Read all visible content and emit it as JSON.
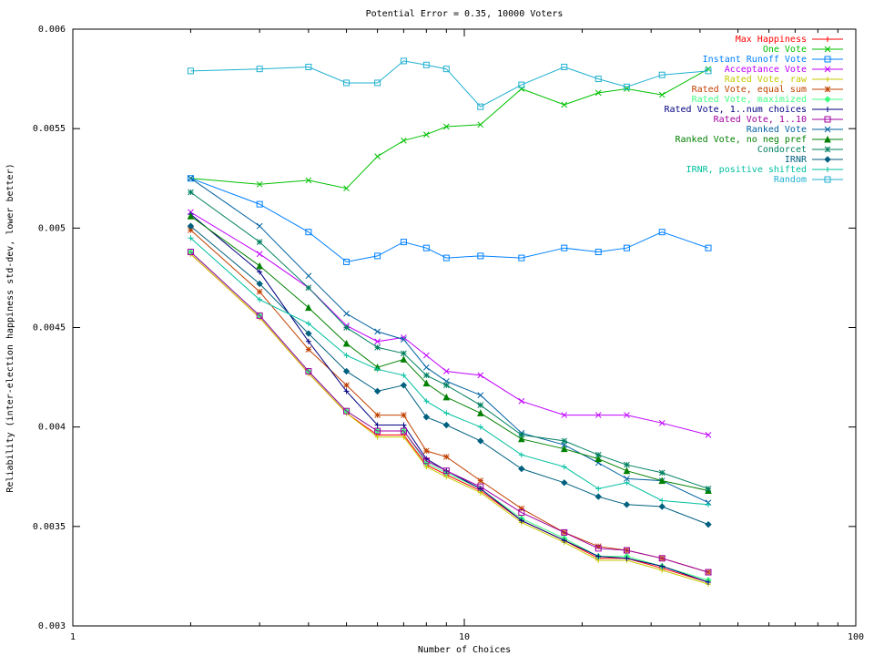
{
  "chart_data": {
    "type": "line",
    "title": "Potential Error = 0.35, 10000 Voters",
    "xlabel": "Number of Choices",
    "ylabel": "Reliability (inter-election happiness std-dev, lower better)",
    "x_scale": "log",
    "xlim": [
      1,
      100
    ],
    "ylim": [
      0.003,
      0.006
    ],
    "x_ticks": [
      1,
      10,
      100
    ],
    "x_tick_labels": [
      "1",
      "10",
      "100"
    ],
    "y_ticks": [
      0.003,
      0.0035,
      0.004,
      0.0045,
      0.005,
      0.0055,
      0.006
    ],
    "y_tick_labels": [
      "0.003",
      "0.0035",
      "0.004",
      "0.0045",
      "0.005",
      "0.0055",
      "0.006"
    ],
    "grid": false,
    "legend_position": "top-right",
    "x": [
      2,
      3,
      4,
      5,
      6,
      7,
      8,
      9,
      11,
      14,
      18,
      22,
      26,
      32,
      42
    ],
    "series": [
      {
        "name": "Max Happiness",
        "color": "#ff0000",
        "marker": "plus",
        "values": [
          0.00487,
          0.00455,
          0.00427,
          0.00407,
          0.00396,
          0.00396,
          0.00381,
          0.00376,
          0.00368,
          0.00353,
          0.00343,
          0.00334,
          0.00334,
          0.00329,
          0.00322
        ]
      },
      {
        "name": "One Vote",
        "color": "#00c000",
        "marker": "x",
        "values": [
          0.00525,
          0.00522,
          0.00524,
          0.0052,
          0.00536,
          0.00544,
          0.00547,
          0.00551,
          0.00552,
          0.0057,
          0.00562,
          0.00568,
          0.0057,
          0.00567,
          0.0058
        ]
      },
      {
        "name": "Instant Runoff Vote",
        "color": "#0080ff",
        "marker": "square",
        "values": [
          0.00525,
          0.00512,
          0.00498,
          0.00483,
          0.00486,
          0.00493,
          0.0049,
          0.00485,
          0.00486,
          0.00485,
          0.0049,
          0.00488,
          0.0049,
          0.00498,
          0.0049
        ]
      },
      {
        "name": "Acceptance Vote",
        "color": "#c000ff",
        "marker": "x",
        "values": [
          0.00508,
          0.00487,
          0.0047,
          0.00451,
          0.00443,
          0.00445,
          0.00436,
          0.00428,
          0.00426,
          0.00413,
          0.00406,
          0.00406,
          0.00406,
          0.00402,
          0.00396
        ]
      },
      {
        "name": "Rated Vote, raw",
        "color": "#c8c800",
        "marker": "plus",
        "values": [
          0.00487,
          0.00455,
          0.00427,
          0.00407,
          0.00395,
          0.00395,
          0.0038,
          0.00375,
          0.00367,
          0.00352,
          0.00342,
          0.00333,
          0.00333,
          0.00328,
          0.00321
        ]
      },
      {
        "name": "Rated Vote, equal sum",
        "color": "#c04000",
        "marker": "star",
        "values": [
          0.00499,
          0.00468,
          0.00439,
          0.00421,
          0.00406,
          0.00406,
          0.00388,
          0.00385,
          0.00373,
          0.00359,
          0.00347,
          0.0034,
          0.00338,
          0.00334,
          0.00327
        ]
      },
      {
        "name": "Rated Vote, maximized",
        "color": "#40ff80",
        "marker": "diamond",
        "values": [
          0.00488,
          0.00456,
          0.00428,
          0.00408,
          0.00398,
          0.00398,
          0.00382,
          0.00377,
          0.00369,
          0.00354,
          0.00344,
          0.00335,
          0.00335,
          0.0033,
          0.00323
        ]
      },
      {
        "name": "Rated Vote, 1..num choices",
        "color": "#000080",
        "marker": "plus",
        "values": [
          0.00507,
          0.00478,
          0.00443,
          0.00418,
          0.00401,
          0.00401,
          0.00384,
          0.00378,
          0.00369,
          0.00353,
          0.00343,
          0.00335,
          0.00334,
          0.0033,
          0.00322
        ]
      },
      {
        "name": "Rated Vote, 1..10",
        "color": "#a000a0",
        "marker": "square",
        "values": [
          0.00488,
          0.00456,
          0.00428,
          0.00408,
          0.00398,
          0.00398,
          0.00383,
          0.00378,
          0.0037,
          0.00357,
          0.00347,
          0.00339,
          0.00338,
          0.00334,
          0.00327
        ]
      },
      {
        "name": "Ranked Vote",
        "color": "#0060a0",
        "marker": "x",
        "values": [
          0.00525,
          0.00501,
          0.00476,
          0.00457,
          0.00448,
          0.00444,
          0.0043,
          0.00423,
          0.00416,
          0.00397,
          0.00391,
          0.00382,
          0.00374,
          0.00373,
          0.00362
        ]
      },
      {
        "name": "Ranked Vote, no neg pref",
        "color": "#008000",
        "marker": "triangle",
        "values": [
          0.00506,
          0.00481,
          0.0046,
          0.00442,
          0.0043,
          0.00434,
          0.00422,
          0.00415,
          0.00407,
          0.00394,
          0.00389,
          0.00384,
          0.00378,
          0.00373,
          0.00368
        ]
      },
      {
        "name": "Condorcet",
        "color": "#008060",
        "marker": "star",
        "values": [
          0.00518,
          0.00493,
          0.0047,
          0.0045,
          0.0044,
          0.00437,
          0.00426,
          0.00421,
          0.00411,
          0.00396,
          0.00393,
          0.00386,
          0.00381,
          0.00377,
          0.00369
        ]
      },
      {
        "name": "IRNR",
        "color": "#006080",
        "marker": "diamond",
        "values": [
          0.00501,
          0.00472,
          0.00447,
          0.00428,
          0.00418,
          0.00421,
          0.00405,
          0.00401,
          0.00393,
          0.00379,
          0.00372,
          0.00365,
          0.00361,
          0.0036,
          0.00351
        ]
      },
      {
        "name": "IRNR, positive shifted",
        "color": "#00c0a0",
        "marker": "plus",
        "values": [
          0.00495,
          0.00464,
          0.00452,
          0.00436,
          0.00429,
          0.00426,
          0.00413,
          0.00407,
          0.004,
          0.00386,
          0.0038,
          0.00369,
          0.00372,
          0.00363,
          0.00361
        ]
      },
      {
        "name": "Random",
        "color": "#20b0d0",
        "marker": "square",
        "values": [
          0.00579,
          0.0058,
          0.00581,
          0.00573,
          0.00573,
          0.00584,
          0.00582,
          0.0058,
          0.00561,
          0.00572,
          0.00581,
          0.00575,
          0.00571,
          0.00577,
          0.00579
        ]
      }
    ]
  }
}
